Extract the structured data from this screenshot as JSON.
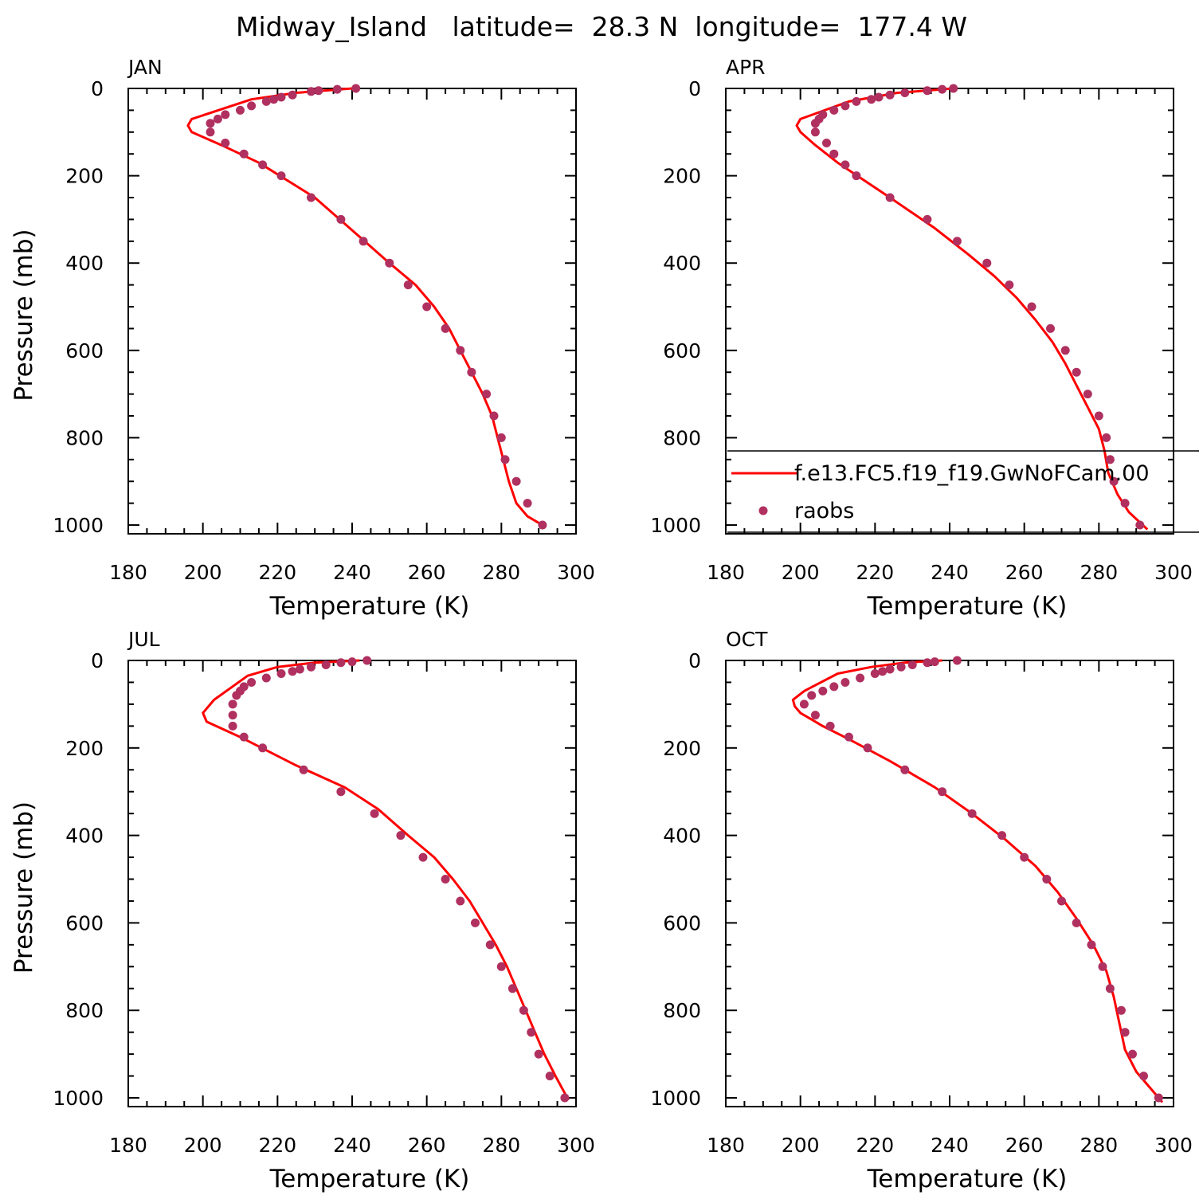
{
  "figure": {
    "title": "Midway_Island   latitude=  28.3 N  longitude=  177.4 W"
  },
  "colors": {
    "model_line": "#ff0000",
    "obs_marker": "#b03060",
    "axis": "#000000",
    "background": "#ffffff"
  },
  "legend": {
    "model_label": "f.e13.FC5.f19_f19.GwNoFCam.00",
    "obs_label": "raobs"
  },
  "chart_data": [
    {
      "type": "line",
      "panel": "JAN",
      "title": "JAN",
      "xlabel": "Temperature (K)",
      "ylabel": "Pressure (mb)",
      "xlim": [
        180,
        300
      ],
      "ylim": [
        1020,
        0
      ],
      "xticks": [
        180,
        200,
        220,
        240,
        260,
        280,
        300
      ],
      "yticks": [
        0,
        200,
        400,
        600,
        800,
        1000
      ],
      "series": [
        {
          "name": "f.e13.FC5.f19_f19.GwNoFCam.00",
          "style": "line",
          "x": [
            240,
            225,
            213,
            197,
            196,
            197,
            205,
            215,
            230,
            242,
            250,
            257,
            262,
            266,
            269,
            272,
            275,
            277.5,
            279,
            280.5,
            282,
            284,
            287,
            292
          ],
          "y": [
            0,
            10,
            25,
            70,
            85,
            100,
            130,
            170,
            250,
            340,
            400,
            450,
            500,
            550,
            600,
            650,
            700,
            750,
            800,
            850,
            900,
            950,
            980,
            1005
          ]
        },
        {
          "name": "raobs",
          "style": "markers",
          "x": [
            241,
            236,
            231,
            229,
            224,
            221,
            219,
            217,
            213,
            210,
            206,
            204,
            202,
            202,
            206,
            211,
            216,
            221,
            229,
            237,
            243,
            250,
            255,
            260,
            265,
            269,
            272,
            276,
            278,
            280,
            281,
            284,
            287,
            291
          ],
          "y": [
            0,
            2,
            5,
            7,
            15,
            20,
            25,
            30,
            40,
            50,
            60,
            70,
            80,
            100,
            125,
            150,
            175,
            200,
            250,
            300,
            350,
            400,
            450,
            500,
            550,
            600,
            650,
            700,
            750,
            800,
            850,
            900,
            950,
            1000
          ]
        }
      ]
    },
    {
      "type": "line",
      "panel": "APR",
      "title": "APR",
      "xlabel": "Temperature (K)",
      "ylabel": "",
      "xlim": [
        180,
        300
      ],
      "ylim": [
        1020,
        0
      ],
      "xticks": [
        180,
        200,
        220,
        240,
        260,
        280,
        300
      ],
      "yticks": [
        0,
        200,
        400,
        600,
        800,
        1000
      ],
      "series": [
        {
          "name": "f.e13.FC5.f19_f19.GwNoFCam.00",
          "style": "line",
          "x": [
            241,
            226,
            213,
            200,
            199,
            200,
            204,
            210,
            224,
            236,
            245,
            252,
            258,
            263,
            267.5,
            271,
            274,
            277,
            280,
            281.5,
            282.5,
            285,
            288,
            293
          ],
          "y": [
            0,
            10,
            30,
            70,
            85,
            100,
            130,
            170,
            250,
            320,
            380,
            430,
            480,
            530,
            580,
            630,
            680,
            730,
            780,
            830,
            880,
            930,
            970,
            1010
          ]
        },
        {
          "name": "raobs",
          "style": "markers",
          "x": [
            241,
            238,
            234,
            228,
            224,
            221,
            219,
            215,
            212,
            209,
            206,
            205,
            204,
            204,
            207,
            209,
            212,
            215,
            224,
            234,
            242,
            250,
            256,
            262,
            267,
            271,
            274,
            277,
            280,
            282,
            283,
            284,
            287,
            291
          ],
          "y": [
            0,
            2,
            5,
            10,
            15,
            20,
            25,
            30,
            40,
            50,
            60,
            70,
            80,
            100,
            125,
            150,
            175,
            200,
            250,
            300,
            350,
            400,
            450,
            500,
            550,
            600,
            650,
            700,
            750,
            800,
            850,
            900,
            950,
            1000
          ]
        }
      ]
    },
    {
      "type": "line",
      "panel": "JUL",
      "title": "JUL",
      "xlabel": "Temperature (K)",
      "ylabel": "Pressure (mb)",
      "xlim": [
        180,
        300
      ],
      "ylim": [
        1020,
        0
      ],
      "xticks": [
        180,
        200,
        220,
        240,
        260,
        280,
        300
      ],
      "yticks": [
        0,
        200,
        400,
        600,
        800,
        1000
      ],
      "series": [
        {
          "name": "f.e13.FC5.f19_f19.GwNoFCam.00",
          "style": "line",
          "x": [
            242,
            230,
            220,
            212,
            203,
            200,
            201,
            210,
            225,
            238,
            247,
            255,
            262,
            267,
            271.5,
            275,
            278.5,
            281.5,
            284,
            286.5,
            289,
            291.5,
            294.5,
            298
          ],
          "y": [
            0,
            5,
            15,
            35,
            90,
            120,
            140,
            175,
            240,
            290,
            340,
            400,
            450,
            500,
            550,
            600,
            650,
            700,
            750,
            800,
            850,
            900,
            950,
            1005
          ]
        },
        {
          "name": "raobs",
          "style": "markers",
          "x": [
            244,
            240,
            237,
            233,
            229,
            226,
            224,
            221,
            217,
            213,
            211,
            210,
            209,
            208,
            208,
            208,
            211,
            216,
            227,
            237,
            246,
            253,
            259,
            265,
            269,
            273,
            277,
            280,
            283,
            286,
            288,
            290,
            293,
            297
          ],
          "y": [
            0,
            3,
            5,
            10,
            15,
            20,
            25,
            30,
            40,
            50,
            60,
            70,
            80,
            100,
            125,
            150,
            175,
            200,
            250,
            300,
            350,
            400,
            450,
            500,
            550,
            600,
            650,
            700,
            750,
            800,
            850,
            900,
            950,
            1000
          ]
        }
      ]
    },
    {
      "type": "line",
      "panel": "OCT",
      "title": "OCT",
      "xlabel": "Temperature (K)",
      "ylabel": "",
      "xlim": [
        180,
        300
      ],
      "ylim": [
        1020,
        0
      ],
      "xticks": [
        180,
        200,
        220,
        240,
        260,
        280,
        300
      ],
      "yticks": [
        0,
        200,
        400,
        600,
        800,
        1000
      ],
      "series": [
        {
          "name": "f.e13.FC5.f19_f19.GwNoFCam.00",
          "style": "line",
          "x": [
            238,
            228,
            219,
            210,
            201,
            198,
            198.5,
            200,
            206,
            213,
            224,
            236,
            246,
            255,
            263,
            269,
            274,
            278.5,
            282,
            284,
            285.5,
            287,
            290,
            294,
            297
          ],
          "y": [
            0,
            5,
            15,
            30,
            70,
            90,
            105,
            120,
            150,
            180,
            230,
            290,
            350,
            410,
            470,
            530,
            590,
            650,
            710,
            770,
            830,
            890,
            940,
            980,
            1010
          ]
        },
        {
          "name": "raobs",
          "style": "markers",
          "x": [
            242,
            236,
            234,
            230,
            227,
            224,
            222,
            220,
            216,
            212,
            209,
            206,
            203,
            201,
            204,
            208,
            213,
            218,
            228,
            238,
            246,
            254,
            260,
            266,
            270,
            274,
            278,
            281,
            283,
            286,
            287,
            289,
            292,
            296
          ],
          "y": [
            0,
            3,
            5,
            10,
            15,
            20,
            25,
            30,
            40,
            50,
            60,
            70,
            80,
            100,
            125,
            150,
            175,
            200,
            250,
            300,
            350,
            400,
            450,
            500,
            550,
            600,
            650,
            700,
            750,
            800,
            850,
            900,
            950,
            1000
          ]
        }
      ]
    }
  ]
}
